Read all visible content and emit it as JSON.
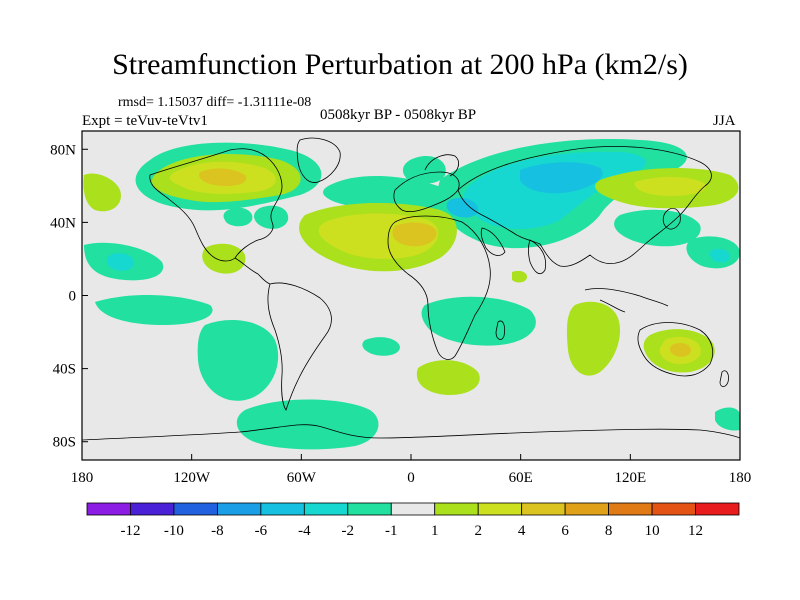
{
  "header": {
    "title": "Streamfunction Perturbation at 200 hPa (km2/s)",
    "stats": "rmsd= 1.15037 diff= -1.31111e-08",
    "period": "0508kyr BP - 0508kyr BP",
    "experiment": "Expt = teVuv-teVtv1",
    "season": "JJA"
  },
  "map": {
    "lon_range": [
      -180,
      180
    ],
    "lat_range": [
      -90,
      90
    ],
    "background_color": "#e8e8e8",
    "x_ticks": [
      {
        "value": -180,
        "label": "180"
      },
      {
        "value": -120,
        "label": "120W"
      },
      {
        "value": -60,
        "label": "60W"
      },
      {
        "value": 0,
        "label": "0"
      },
      {
        "value": 60,
        "label": "60E"
      },
      {
        "value": 120,
        "label": "120E"
      },
      {
        "value": 180,
        "label": "180"
      }
    ],
    "y_ticks": [
      {
        "value": 80,
        "label": "80N"
      },
      {
        "value": 40,
        "label": "40N"
      },
      {
        "value": 0,
        "label": "0"
      },
      {
        "value": -40,
        "label": "40S"
      },
      {
        "value": -80,
        "label": "80S"
      }
    ]
  },
  "colorbar": {
    "colors": [
      "#8c1ce4",
      "#4b21d8",
      "#2160de",
      "#1a9ee6",
      "#16c0e0",
      "#16d8d0",
      "#22e0a0",
      "#e8e8e8",
      "#aae01c",
      "#cce020",
      "#dcc420",
      "#e0a018",
      "#e07a14",
      "#e45214",
      "#e81c1c"
    ],
    "labels": [
      "-12",
      "-10",
      "-8",
      "-6",
      "-4",
      "-2",
      "-1",
      "1",
      "2",
      "4",
      "6",
      "8",
      "10",
      "12"
    ]
  }
}
